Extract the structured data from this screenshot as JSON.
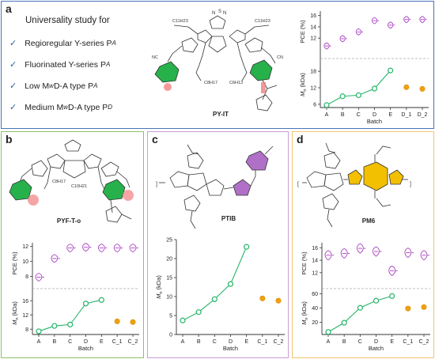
{
  "panels": {
    "a": {
      "label": "a",
      "study_title": "Universality study for",
      "items": [
        "Regioregular Y-series P",
        "Fluorinated Y-series P",
        "Low M",
        " D-A type P",
        "Medium M",
        " D-A type P"
      ],
      "item_subs": [
        "A",
        "A",
        "w",
        "A",
        "w",
        "D"
      ],
      "compound": "PY-IT"
    },
    "b": {
      "label": "b",
      "compound": "PYF-T-o"
    },
    "c": {
      "label": "c",
      "compound": "PTIB"
    },
    "d": {
      "label": "d",
      "compound": "PM6"
    }
  },
  "colors": {
    "panel_a_border": "#4a76b8",
    "panel_b_border": "#8cc06a",
    "panel_c_border": "#c89ed6",
    "panel_d_border": "#f0c670",
    "line_green": "#26b56a",
    "marker_orange": "#f0a010",
    "violin_purple": "#a83fc0",
    "highlight_green": "#27b14b",
    "highlight_red": "#f08080",
    "highlight_purple": "#b070c8",
    "highlight_yellow": "#f2c000"
  },
  "chart_data": [
    {
      "panel": "a",
      "type": "line",
      "xlabel": "Batch",
      "categories": [
        "A",
        "B",
        "C",
        "D",
        "E",
        "D_1",
        "D_2"
      ],
      "pce_ylabel": "PCE (%)",
      "pce_ticks": [
        "12",
        "14",
        "16"
      ],
      "pce_ylim": [
        9.5,
        16.8
      ],
      "pce_values": [
        10.6,
        11.9,
        13.1,
        15.1,
        14.3,
        15.3,
        15.3
      ],
      "mn_ylabel": "M",
      "mn_ylabel_sub": "n",
      "mn_ylabel_unit": " (kDa)",
      "mn_ticks": [
        "6",
        "12",
        "18"
      ],
      "mn_ylim": [
        4.8,
        21.5
      ],
      "mn_series": [
        5.7,
        8.9,
        9.3,
        11.7,
        18.3
      ],
      "mn_recycled": [
        12.2,
        11.6
      ]
    },
    {
      "panel": "b",
      "type": "line",
      "xlabel": "Batch",
      "categories": [
        "A",
        "B",
        "C",
        "D",
        "E",
        "C_1",
        "C_2"
      ],
      "pce_ylabel": "PCE (%)",
      "pce_ticks": [
        "8",
        "10",
        "12"
      ],
      "pce_ylim": [
        7,
        12.5
      ],
      "pce_values": [
        7.9,
        10.4,
        11.8,
        11.9,
        11.8,
        11.8,
        11.8
      ],
      "mn_ylabel": "M",
      "mn_ylabel_sub": "n",
      "mn_ylabel_unit": " (kDa)",
      "mn_ticks": [
        "8",
        "12",
        "16"
      ],
      "mn_ylim": [
        6.5,
        18.5
      ],
      "mn_series": [
        7.4,
        8.9,
        9.3,
        15.2,
        16.2
      ],
      "mn_recycled": [
        10.2,
        10.0
      ]
    },
    {
      "panel": "c",
      "type": "line",
      "xlabel": "Batch",
      "categories": [
        "A",
        "B",
        "C",
        "D",
        "E",
        "C_1",
        "C_2"
      ],
      "mn_ylabel": "M",
      "mn_ylabel_sub": "n",
      "mn_ylabel_unit": " (kDa)",
      "mn_ticks": [
        "0",
        "5",
        "10",
        "15",
        "20",
        "25"
      ],
      "mn_ylim": [
        0,
        25
      ],
      "mn_series": [
        3.7,
        5.9,
        9.3,
        13.3,
        23.1
      ],
      "mn_recycled": [
        9.5,
        8.9
      ]
    },
    {
      "panel": "d",
      "type": "line",
      "xlabel": "Batch",
      "categories": [
        "A",
        "B",
        "C",
        "D",
        "E",
        "C_1",
        "C_2"
      ],
      "pce_ylabel": "PCE (%)",
      "pce_ticks": [
        "12",
        "14",
        "16"
      ],
      "pce_ylim": [
        10.2,
        16.8
      ],
      "pce_values": [
        14.8,
        15.1,
        15.9,
        15.4,
        12.3,
        15.2,
        14.8
      ],
      "mn_ylabel": "M",
      "mn_ylabel_sub": "n",
      "mn_ylabel_unit": " (kDa)",
      "mn_ticks": [
        "20",
        "40",
        "60"
      ],
      "mn_ylim": [
        3,
        63
      ],
      "mn_series": [
        6.5,
        19.5,
        40.5,
        50.5,
        57
      ],
      "mn_recycled": [
        39.5,
        41.5
      ]
    }
  ]
}
